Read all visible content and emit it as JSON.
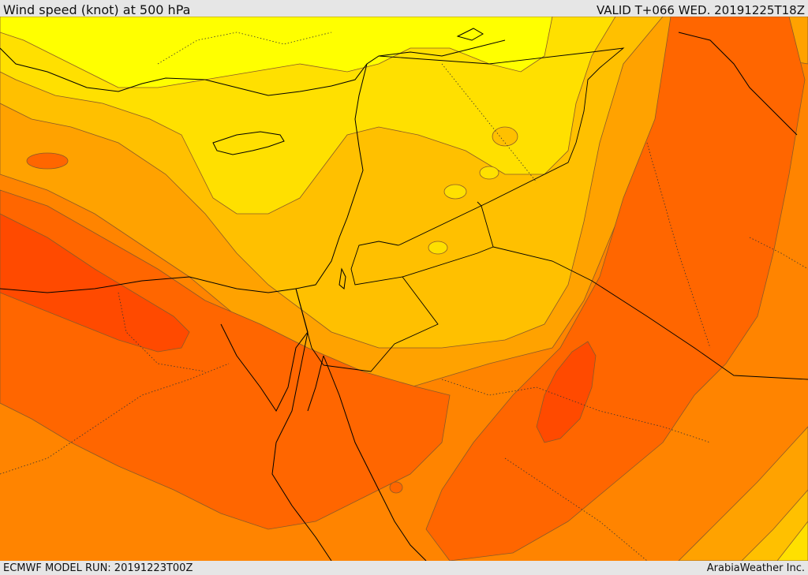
{
  "header": {
    "title": "Wind speed (knot) at 500 hPa",
    "valid_time": "VALID T+066 WED. 20191225T18Z"
  },
  "footer": {
    "model_run": "ECMWF MODEL RUN: 20191223T00Z",
    "provider": "ArabiaWeather Inc."
  },
  "colors": {
    "band_lightest": "#ffff00",
    "band_light": "#ffe000",
    "band_mid_light": "#ffc000",
    "band_mid": "#ffa200",
    "band_mid_dark": "#ff8400",
    "band_dark": "#ff6600",
    "band_darkest": "#ff4a00",
    "contour": "#8a5a28",
    "coastline": "#000000",
    "frame": "#e6e6e6"
  }
}
